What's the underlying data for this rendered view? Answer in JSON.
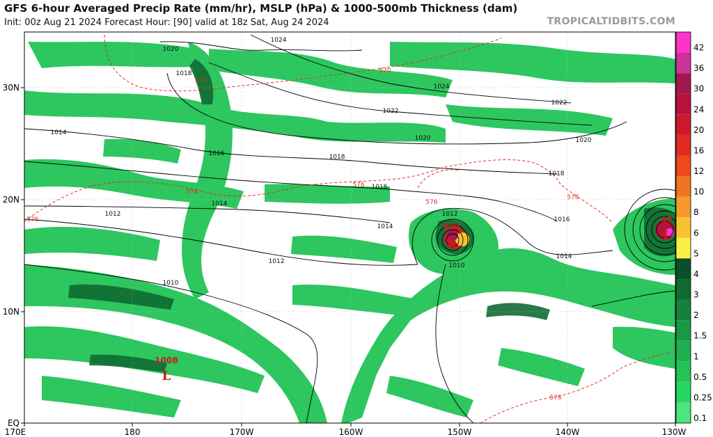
{
  "header": {
    "title": "GFS 6-hour Averaged Precip Rate (mm/hr), MSLP (hPa) & 1000-500mb Thickness (dam)",
    "subtitle": "Init: 00z Aug 21 2024   Forecast Hour: [90]   valid at 18z Sat, Aug 24 2024",
    "brand": "TROPICALTIDBITS.COM"
  },
  "axes": {
    "x_ticks": [
      "170E",
      "180",
      "170W",
      "160W",
      "150W",
      "140W",
      "130W"
    ],
    "y_ticks": [
      "30N",
      "20N",
      "10N",
      "EQ"
    ]
  },
  "colorbar": {
    "labels": [
      "42",
      "36",
      "30",
      "24",
      "20",
      "16",
      "12",
      "10",
      "8",
      "6",
      "5",
      "4",
      "3",
      "2",
      "1.5",
      "1",
      "0.5",
      "0.25",
      "0.1"
    ],
    "colors": [
      "#ff33cc",
      "#cc3399",
      "#a0184f",
      "#b8123c",
      "#cc1a2a",
      "#e02a22",
      "#ee4a1c",
      "#f27420",
      "#f59a2a",
      "#f8c232",
      "#fbef44",
      "#0a4f27",
      "#106b33",
      "#14823c",
      "#189a45",
      "#1eb04e",
      "#22c457",
      "#25d862",
      "#4be67e"
    ]
  },
  "isobars": [
    {
      "label": "1024"
    },
    {
      "label": "1024"
    },
    {
      "label": "1022"
    },
    {
      "label": "1022"
    },
    {
      "label": "1020"
    },
    {
      "label": "1020"
    },
    {
      "label": "1020"
    },
    {
      "label": "1018"
    },
    {
      "label": "1018"
    },
    {
      "label": "1018"
    },
    {
      "label": "1016"
    },
    {
      "label": "1016"
    },
    {
      "label": "1016"
    },
    {
      "label": "1014"
    },
    {
      "label": "1014"
    },
    {
      "label": "1014"
    },
    {
      "label": "1014"
    },
    {
      "label": "1012"
    },
    {
      "label": "1012"
    },
    {
      "label": "1012"
    },
    {
      "label": "1010"
    },
    {
      "label": "1010"
    }
  ],
  "thickness": [
    {
      "label": "570"
    },
    {
      "label": "576"
    },
    {
      "label": "576"
    },
    {
      "label": "576"
    },
    {
      "label": "576"
    },
    {
      "label": "576"
    },
    {
      "label": "576"
    },
    {
      "label": "576"
    }
  ],
  "lows": [
    {
      "pressure": "988",
      "symbol": "L"
    },
    {
      "pressure": "97",
      "symbol": "L"
    },
    {
      "pressure": "1008",
      "symbol": "L"
    }
  ]
}
